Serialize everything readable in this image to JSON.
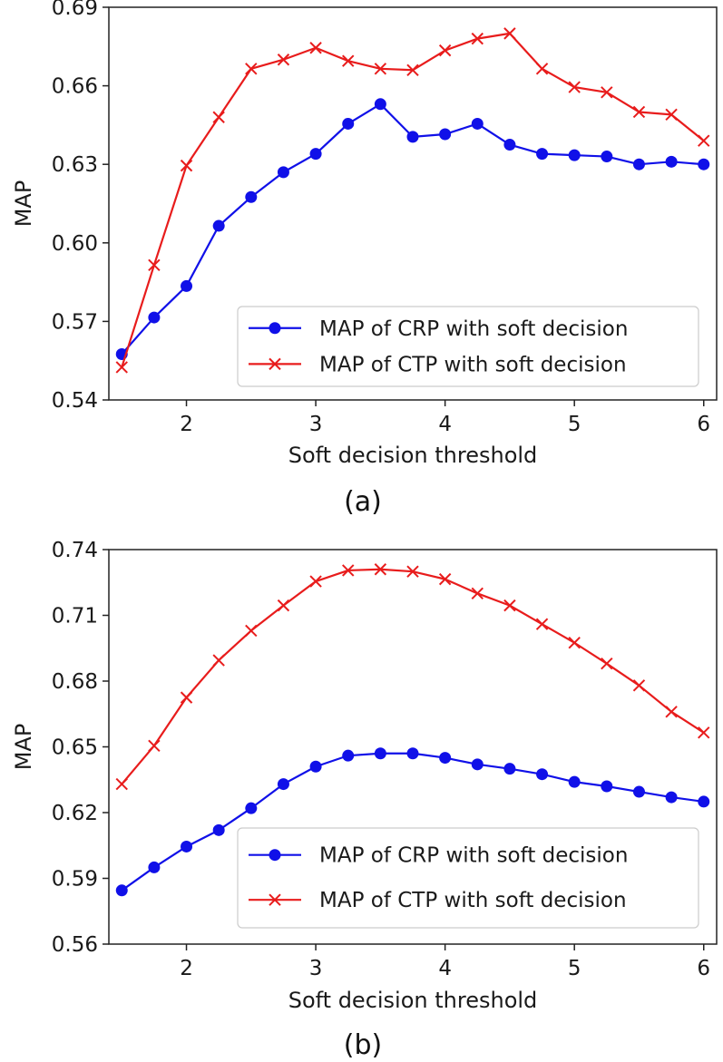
{
  "colors": {
    "crp": "#1010e8",
    "ctp": "#e81c1c",
    "axis": "#222222"
  },
  "chart_data": [
    {
      "type": "line",
      "caption": "(a)",
      "xlabel": "Soft decision threshold",
      "ylabel": "MAP",
      "xlim": [
        1.4,
        6.1
      ],
      "ylim": [
        0.54,
        0.69
      ],
      "xticks": [
        2,
        3,
        4,
        5,
        6
      ],
      "yticks": [
        0.54,
        0.57,
        0.6,
        0.63,
        0.66,
        0.69
      ],
      "ytick_labels": [
        "0.54",
        "0.57",
        "0.60",
        "0.63",
        "0.66",
        "0.69"
      ],
      "legend_position": "lower-right",
      "x": [
        1.5,
        1.75,
        2.0,
        2.25,
        2.5,
        2.75,
        3.0,
        3.25,
        3.5,
        3.75,
        4.0,
        4.25,
        4.5,
        4.75,
        5.0,
        5.25,
        5.5,
        5.75,
        6.0
      ],
      "series": [
        {
          "name": "MAP of CRP with soft decision",
          "marker": "circle",
          "color": "#1010e8",
          "values": [
            0.5575,
            0.5715,
            0.5835,
            0.6065,
            0.6175,
            0.627,
            0.634,
            0.6455,
            0.653,
            0.6405,
            0.6415,
            0.6455,
            0.6375,
            0.634,
            0.6335,
            0.633,
            0.63,
            0.631,
            0.63
          ]
        },
        {
          "name": "MAP of CTP with soft decision",
          "marker": "x",
          "color": "#e81c1c",
          "values": [
            0.5525,
            0.5915,
            0.6295,
            0.648,
            0.6665,
            0.67,
            0.6745,
            0.6695,
            0.6665,
            0.666,
            0.6735,
            0.678,
            0.68,
            0.6665,
            0.6595,
            0.6575,
            0.65,
            0.649,
            0.639
          ]
        }
      ]
    },
    {
      "type": "line",
      "caption": "(b)",
      "xlabel": "Soft decision threshold",
      "ylabel": "MAP",
      "xlim": [
        1.4,
        6.1
      ],
      "ylim": [
        0.56,
        0.74
      ],
      "xticks": [
        2,
        3,
        4,
        5,
        6
      ],
      "yticks": [
        0.56,
        0.59,
        0.62,
        0.65,
        0.68,
        0.71,
        0.74
      ],
      "ytick_labels": [
        "0.56",
        "0.59",
        "0.62",
        "0.65",
        "0.68",
        "0.71",
        "0.74"
      ],
      "legend_position": "lower-right",
      "x": [
        1.5,
        1.75,
        2.0,
        2.25,
        2.5,
        2.75,
        3.0,
        3.25,
        3.5,
        3.75,
        4.0,
        4.25,
        4.5,
        4.75,
        5.0,
        5.25,
        5.5,
        5.75,
        6.0
      ],
      "series": [
        {
          "name": "MAP of CRP with soft decision",
          "marker": "circle",
          "color": "#1010e8",
          "values": [
            0.5845,
            0.595,
            0.6045,
            0.612,
            0.622,
            0.633,
            0.641,
            0.646,
            0.647,
            0.647,
            0.645,
            0.642,
            0.64,
            0.6375,
            0.634,
            0.632,
            0.6295,
            0.627,
            0.625
          ]
        },
        {
          "name": "MAP of CTP with soft decision",
          "marker": "x",
          "color": "#e81c1c",
          "values": [
            0.633,
            0.6505,
            0.6725,
            0.6895,
            0.703,
            0.7145,
            0.7255,
            0.7305,
            0.731,
            0.73,
            0.7265,
            0.72,
            0.7145,
            0.706,
            0.6975,
            0.688,
            0.678,
            0.666,
            0.6565
          ]
        }
      ]
    }
  ]
}
